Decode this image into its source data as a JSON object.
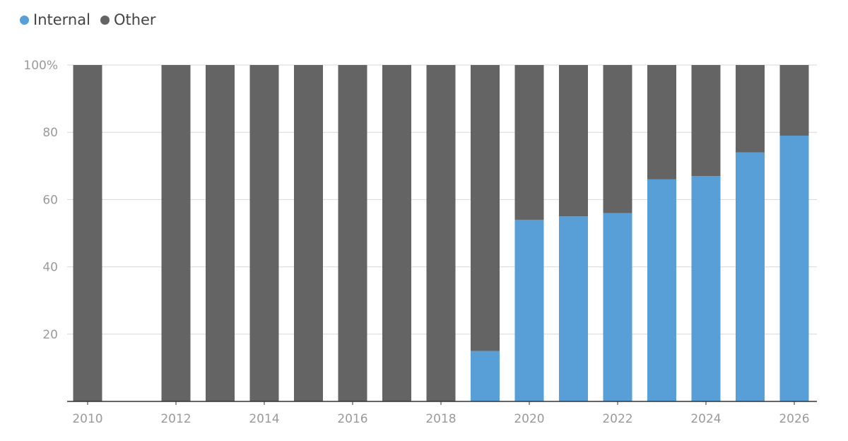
{
  "chart_data": {
    "type": "bar",
    "stacked": true,
    "categories": [
      "2010",
      "2011",
      "2012",
      "2013",
      "2014",
      "2015",
      "2016",
      "2017",
      "2018",
      "2019",
      "2020",
      "2021",
      "2022",
      "2023",
      "2024",
      "2025",
      "2026"
    ],
    "x_tick_labels": [
      "2010",
      "",
      "2012",
      "",
      "2014",
      "",
      "2016",
      "",
      "2018",
      "",
      "2020",
      "",
      "2022",
      "",
      "2024",
      "",
      "2026"
    ],
    "series": [
      {
        "name": "Internal",
        "color": "#579fd6",
        "values": [
          0,
          0,
          0,
          0,
          0,
          0,
          0,
          0,
          0,
          15,
          54,
          55,
          56,
          66,
          67,
          74,
          79
        ]
      },
      {
        "name": "Other",
        "color": "#646464",
        "values": [
          100,
          0,
          100,
          100,
          100,
          100,
          100,
          100,
          100,
          85,
          46,
          45,
          44,
          34,
          33,
          26,
          21
        ]
      }
    ],
    "ylim": [
      0,
      100
    ],
    "y_ticks": [
      20,
      40,
      60,
      80,
      100
    ],
    "y_tick_labels": [
      "20",
      "40",
      "60",
      "80",
      "100%"
    ],
    "legend_position": "top-left",
    "grid": true
  }
}
